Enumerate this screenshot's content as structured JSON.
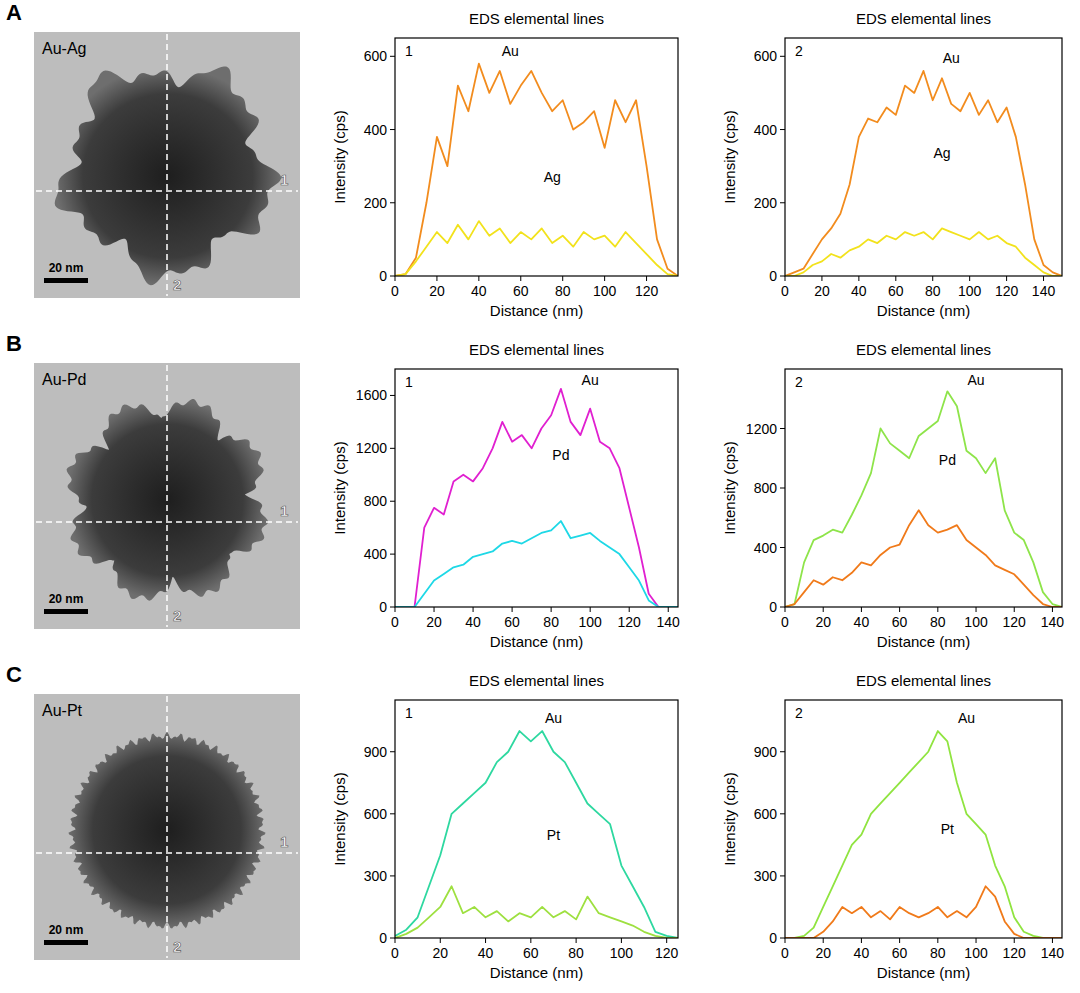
{
  "panels": [
    {
      "letter": "A",
      "label": "Au-Ag",
      "scale_bar": "20 nm",
      "line_labels": [
        "1",
        "2"
      ]
    },
    {
      "letter": "B",
      "label": "Au-Pd",
      "scale_bar": "20 nm",
      "line_labels": [
        "1",
        "2"
      ]
    },
    {
      "letter": "C",
      "label": "Au-Pt",
      "scale_bar": "20 nm",
      "line_labels": [
        "1",
        "2"
      ]
    }
  ],
  "chart_data": [
    {
      "type": "line",
      "title": "EDS elemental lines",
      "annotation": "1",
      "x_label": "Distance (nm)",
      "y_label": "Intensity (cps)",
      "x": [
        0,
        5,
        10,
        15,
        20,
        25,
        30,
        35,
        40,
        45,
        50,
        55,
        60,
        65,
        70,
        75,
        80,
        85,
        90,
        95,
        100,
        105,
        110,
        115,
        120,
        125,
        130,
        135
      ],
      "xlim": [
        0,
        135
      ],
      "xticks": [
        0,
        20,
        40,
        60,
        80,
        100,
        120
      ],
      "ylim": [
        0,
        650
      ],
      "yticks": [
        0,
        200,
        400,
        600
      ],
      "grid": false,
      "series": [
        {
          "name": "Au",
          "color": "#f28c1e",
          "values": [
            0,
            5,
            50,
            200,
            380,
            300,
            520,
            450,
            580,
            500,
            560,
            470,
            520,
            560,
            500,
            450,
            480,
            400,
            420,
            450,
            350,
            480,
            420,
            480,
            300,
            100,
            20,
            0
          ]
        },
        {
          "name": "Ag",
          "color": "#f2e21c",
          "values": [
            0,
            5,
            40,
            80,
            120,
            90,
            140,
            100,
            150,
            110,
            130,
            90,
            120,
            100,
            130,
            90,
            110,
            80,
            120,
            100,
            110,
            80,
            120,
            90,
            60,
            30,
            5,
            0
          ]
        }
      ]
    },
    {
      "type": "line",
      "title": "EDS elemental lines",
      "annotation": "2",
      "x_label": "Distance (nm)",
      "y_label": "Intensity (cps)",
      "x": [
        0,
        5,
        10,
        15,
        20,
        25,
        30,
        35,
        40,
        45,
        50,
        55,
        60,
        65,
        70,
        75,
        80,
        85,
        90,
        95,
        100,
        105,
        110,
        115,
        120,
        125,
        130,
        135,
        140,
        145,
        150
      ],
      "xlim": [
        0,
        150
      ],
      "xticks": [
        0,
        20,
        40,
        60,
        80,
        100,
        120,
        140
      ],
      "ylim": [
        0,
        650
      ],
      "yticks": [
        0,
        200,
        400,
        600
      ],
      "grid": false,
      "series": [
        {
          "name": "Au",
          "color": "#f28c1e",
          "values": [
            0,
            10,
            20,
            60,
            100,
            130,
            170,
            250,
            380,
            430,
            420,
            460,
            440,
            520,
            500,
            560,
            480,
            540,
            470,
            450,
            500,
            440,
            480,
            420,
            460,
            380,
            250,
            100,
            30,
            10,
            0
          ]
        },
        {
          "name": "Ag",
          "color": "#f2e21c",
          "values": [
            0,
            0,
            10,
            30,
            40,
            60,
            50,
            70,
            80,
            100,
            90,
            110,
            100,
            120,
            110,
            120,
            100,
            130,
            120,
            110,
            100,
            120,
            100,
            110,
            90,
            80,
            50,
            30,
            10,
            0,
            0
          ]
        }
      ]
    },
    {
      "type": "line",
      "title": "EDS elemental lines",
      "annotation": "1",
      "x_label": "Distance (nm)",
      "y_label": "Intensity (cps)",
      "x": [
        0,
        5,
        10,
        15,
        20,
        25,
        30,
        35,
        40,
        45,
        50,
        55,
        60,
        65,
        70,
        75,
        80,
        85,
        90,
        95,
        100,
        105,
        110,
        115,
        120,
        125,
        130,
        135,
        140,
        145
      ],
      "xlim": [
        0,
        145
      ],
      "xticks": [
        0,
        20,
        40,
        60,
        80,
        100,
        120,
        140
      ],
      "ylim": [
        0,
        1800
      ],
      "yticks": [
        0,
        400,
        800,
        1200,
        1600
      ],
      "grid": false,
      "series": [
        {
          "name": "Au",
          "color": "#e020d0",
          "values": [
            0,
            0,
            0,
            600,
            750,
            700,
            950,
            1000,
            950,
            1050,
            1200,
            1400,
            1250,
            1300,
            1200,
            1350,
            1450,
            1650,
            1400,
            1300,
            1500,
            1250,
            1200,
            1050,
            750,
            450,
            100,
            0,
            0,
            0
          ]
        },
        {
          "name": "Pd",
          "color": "#1ed8e6",
          "values": [
            0,
            0,
            0,
            100,
            200,
            250,
            300,
            320,
            380,
            400,
            420,
            480,
            500,
            480,
            520,
            560,
            580,
            650,
            520,
            540,
            560,
            500,
            450,
            400,
            300,
            200,
            50,
            0,
            0,
            0
          ]
        }
      ]
    },
    {
      "type": "line",
      "title": "EDS elemental lines",
      "annotation": "2",
      "x_label": "Distance (nm)",
      "y_label": "Intensity (cps)",
      "x": [
        0,
        5,
        10,
        15,
        20,
        25,
        30,
        35,
        40,
        45,
        50,
        55,
        60,
        65,
        70,
        75,
        80,
        85,
        90,
        95,
        100,
        105,
        110,
        115,
        120,
        125,
        130,
        135,
        140,
        145
      ],
      "xlim": [
        0,
        145
      ],
      "xticks": [
        0,
        20,
        40,
        60,
        80,
        100,
        120,
        140
      ],
      "ylim": [
        0,
        1600
      ],
      "yticks": [
        0,
        400,
        800,
        1200
      ],
      "grid": false,
      "series": [
        {
          "name": "Au",
          "color": "#8ee44a",
          "values": [
            0,
            20,
            300,
            450,
            480,
            520,
            500,
            620,
            750,
            900,
            1200,
            1100,
            1050,
            1000,
            1150,
            1200,
            1250,
            1450,
            1350,
            1050,
            1000,
            900,
            1000,
            650,
            500,
            450,
            300,
            100,
            20,
            0
          ]
        },
        {
          "name": "Pd",
          "color": "#f07a1a",
          "values": [
            0,
            20,
            100,
            180,
            150,
            200,
            180,
            230,
            300,
            280,
            350,
            400,
            420,
            550,
            650,
            550,
            500,
            520,
            550,
            450,
            400,
            350,
            280,
            250,
            220,
            150,
            80,
            20,
            0,
            0
          ]
        }
      ]
    },
    {
      "type": "line",
      "title": "EDS elemental lines",
      "annotation": "1",
      "x_label": "Distance (nm)",
      "y_label": "Intensity (cps)",
      "x": [
        0,
        5,
        10,
        15,
        20,
        25,
        30,
        35,
        40,
        45,
        50,
        55,
        60,
        65,
        70,
        75,
        80,
        85,
        90,
        95,
        100,
        105,
        110,
        115,
        120,
        125
      ],
      "xlim": [
        0,
        125
      ],
      "xticks": [
        0,
        20,
        40,
        60,
        80,
        100,
        120
      ],
      "ylim": [
        0,
        1150
      ],
      "yticks": [
        0,
        300,
        600,
        900
      ],
      "grid": false,
      "series": [
        {
          "name": "Au",
          "color": "#2ed8a0",
          "values": [
            10,
            40,
            100,
            250,
            400,
            600,
            650,
            700,
            750,
            850,
            900,
            1000,
            950,
            1000,
            900,
            850,
            750,
            650,
            600,
            550,
            350,
            250,
            150,
            30,
            10,
            0
          ]
        },
        {
          "name": "Pt",
          "color": "#9ee040",
          "values": [
            0,
            20,
            50,
            100,
            150,
            250,
            120,
            150,
            100,
            130,
            80,
            120,
            100,
            150,
            100,
            130,
            90,
            200,
            120,
            100,
            80,
            60,
            30,
            10,
            0,
            0
          ]
        }
      ]
    },
    {
      "type": "line",
      "title": "EDS elemental lines",
      "annotation": "2",
      "x_label": "Distance (nm)",
      "y_label": "Intensity (cps)",
      "x": [
        0,
        5,
        10,
        15,
        20,
        25,
        30,
        35,
        40,
        45,
        50,
        55,
        60,
        65,
        70,
        75,
        80,
        85,
        90,
        95,
        100,
        105,
        110,
        115,
        120,
        125,
        130,
        135,
        140,
        145
      ],
      "xlim": [
        0,
        145
      ],
      "xticks": [
        0,
        20,
        40,
        60,
        80,
        100,
        120,
        140
      ],
      "ylim": [
        0,
        1150
      ],
      "yticks": [
        0,
        300,
        600,
        900
      ],
      "grid": false,
      "series": [
        {
          "name": "Au",
          "color": "#90e440",
          "values": [
            0,
            0,
            10,
            50,
            150,
            250,
            350,
            450,
            500,
            600,
            650,
            700,
            750,
            800,
            850,
            900,
            1000,
            950,
            750,
            600,
            550,
            500,
            350,
            250,
            100,
            30,
            10,
            0,
            0,
            0
          ]
        },
        {
          "name": "Pt",
          "color": "#f07a1a",
          "values": [
            0,
            0,
            0,
            0,
            30,
            80,
            150,
            120,
            150,
            100,
            130,
            90,
            150,
            120,
            100,
            120,
            150,
            100,
            130,
            100,
            150,
            250,
            200,
            80,
            20,
            0,
            0,
            0,
            0,
            0
          ]
        }
      ]
    }
  ]
}
